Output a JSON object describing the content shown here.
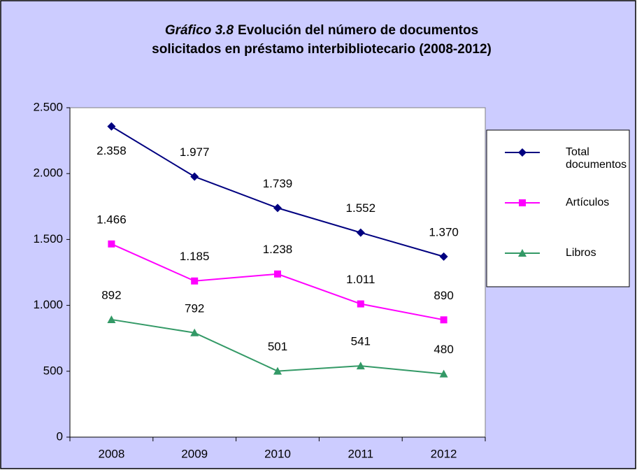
{
  "chart_data": {
    "type": "line",
    "title_label": "Gráfico 3.8",
    "title": "Evolución del número de documentos solicitados en préstamo interbibliotecario (2008-2012)",
    "categories": [
      "2008",
      "2009",
      "2010",
      "2011",
      "2012"
    ],
    "series": [
      {
        "name": "Total documentos",
        "color": "#000080",
        "marker": "diamond",
        "values": [
          2358,
          1977,
          1739,
          1552,
          1370
        ],
        "value_labels": [
          "2.358",
          "1.977",
          "1.739",
          "1.552",
          "1.370"
        ]
      },
      {
        "name": "Artículos",
        "color": "#ff00ff",
        "marker": "square",
        "values": [
          1466,
          1185,
          1238,
          1011,
          890
        ],
        "value_labels": [
          "1.466",
          "1.185",
          "1.238",
          "1.011",
          "890"
        ]
      },
      {
        "name": "Libros",
        "color": "#339966",
        "marker": "triangle",
        "values": [
          892,
          792,
          501,
          541,
          480
        ],
        "value_labels": [
          "892",
          "792",
          "501",
          "541",
          "480"
        ]
      }
    ],
    "ylim": [
      0,
      2500
    ],
    "yticks": [
      0,
      {
        "value": 500,
        "label": "500"
      },
      {
        "value": 1000,
        "label": "1.000"
      },
      {
        "value": 1500,
        "label": "1.500"
      },
      {
        "value": 2000,
        "label": "2.000"
      },
      {
        "value": 2500,
        "label": "2.500"
      }
    ],
    "grid": false,
    "legend": "right"
  }
}
